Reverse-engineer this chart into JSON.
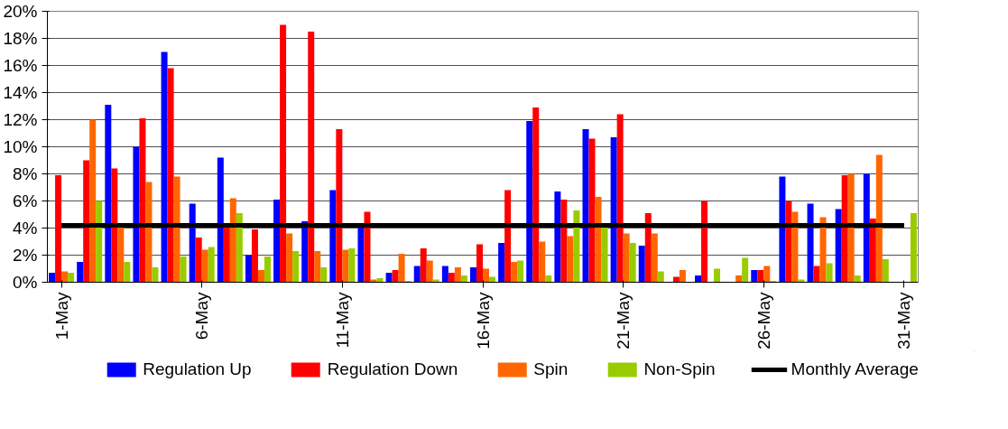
{
  "chart_data": {
    "type": "bar",
    "categories": [
      "1-May",
      null,
      null,
      null,
      null,
      "6-May",
      null,
      null,
      null,
      null,
      "11-May",
      null,
      null,
      null,
      null,
      "16-May",
      null,
      null,
      null,
      null,
      "21-May",
      null,
      null,
      null,
      null,
      "26-May",
      null,
      null,
      null,
      null,
      "31-May"
    ],
    "series": [
      {
        "name": "Regulation Up",
        "color": "#0000ff",
        "values": [
          0.7,
          1.5,
          13.1,
          10.0,
          17.0,
          5.8,
          9.2,
          2.0,
          6.1,
          4.5,
          6.8,
          4.1,
          0.7,
          1.2,
          1.2,
          1.1,
          2.9,
          11.9,
          6.7,
          11.3,
          10.7,
          2.7,
          0,
          0.5,
          0,
          0.9,
          7.8,
          5.8,
          5.4,
          8.0,
          0
        ]
      },
      {
        "name": "Regulation Down",
        "color": "#ff0000",
        "values": [
          7.9,
          9.0,
          8.4,
          12.1,
          15.8,
          3.3,
          4.0,
          3.9,
          19.0,
          18.5,
          11.3,
          5.2,
          0.9,
          2.5,
          0.7,
          2.8,
          6.8,
          12.9,
          6.1,
          10.6,
          12.4,
          5.1,
          0.4,
          6.0,
          0,
          0.9,
          6.0,
          1.2,
          7.9,
          4.7,
          0
        ]
      },
      {
        "name": "Spin",
        "color": "#ff6600",
        "values": [
          0.8,
          12.0,
          4.1,
          7.4,
          7.8,
          2.4,
          6.2,
          0.9,
          3.6,
          2.3,
          2.4,
          0.2,
          2.1,
          1.6,
          1.1,
          1.0,
          1.5,
          3.0,
          3.4,
          6.3,
          3.6,
          3.6,
          0.9,
          0,
          0.5,
          1.2,
          5.2,
          4.8,
          8.0,
          9.4,
          0
        ]
      },
      {
        "name": "Non-Spin",
        "color": "#99cc00",
        "values": [
          0.7,
          6.0,
          1.5,
          1.1,
          1.9,
          2.6,
          5.1,
          1.9,
          2.3,
          1.1,
          2.5,
          0.3,
          0.1,
          0.2,
          0.5,
          0.4,
          1.6,
          0.5,
          5.3,
          4.1,
          2.9,
          0.8,
          0,
          1.0,
          1.8,
          0.1,
          0.2,
          1.4,
          0.5,
          1.7,
          5.1
        ]
      },
      {
        "name": "Monthly Average",
        "type": "line",
        "color": "#000000",
        "values": [
          4.2,
          4.2,
          4.2,
          4.2,
          4.2,
          4.2,
          4.2,
          4.2,
          4.2,
          4.2,
          4.2,
          4.2,
          4.2,
          4.2,
          4.2,
          4.2,
          4.2,
          4.2,
          4.2,
          4.2,
          4.2,
          4.2,
          4.2,
          4.2,
          4.2,
          4.2,
          4.2,
          4.2,
          4.2,
          4.2,
          4.2
        ]
      }
    ],
    "ylim": [
      0,
      20
    ],
    "yticks": [
      {
        "value": 0,
        "label": "0%"
      },
      {
        "value": 2,
        "label": "2%"
      },
      {
        "value": 4,
        "label": "4%"
      },
      {
        "value": 6,
        "label": "6%"
      },
      {
        "value": 8,
        "label": "8%"
      },
      {
        "value": 10,
        "label": "10%"
      },
      {
        "value": 12,
        "label": "12%"
      },
      {
        "value": 14,
        "label": "14%"
      },
      {
        "value": 16,
        "label": "16%"
      },
      {
        "value": 18,
        "label": "18%"
      },
      {
        "value": 20,
        "label": "20%"
      }
    ],
    "grid": "y",
    "legend": "bottom",
    "marker": "none",
    "line_style": "solid"
  }
}
